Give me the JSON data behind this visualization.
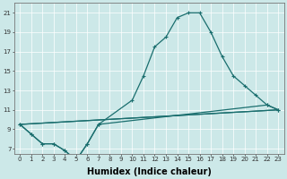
{
  "title": "",
  "xlabel": "Humidex (Indice chaleur)",
  "bg_color": "#cce8e8",
  "line_color": "#1a6e6e",
  "xlim": [
    -0.5,
    23.5
  ],
  "ylim": [
    6.5,
    22
  ],
  "xticks": [
    0,
    1,
    2,
    3,
    4,
    5,
    6,
    7,
    8,
    9,
    10,
    11,
    12,
    13,
    14,
    15,
    16,
    17,
    18,
    19,
    20,
    21,
    22,
    23
  ],
  "yticks": [
    7,
    9,
    11,
    13,
    15,
    17,
    19,
    21
  ],
  "line1_x": [
    0,
    1,
    2,
    3,
    4,
    5,
    6,
    7,
    10,
    11,
    12,
    13,
    14,
    15,
    16,
    17,
    18,
    19,
    20,
    21,
    22,
    23
  ],
  "line1_y": [
    9.5,
    8.5,
    7.5,
    7.5,
    6.8,
    5.8,
    7.5,
    9.5,
    12.0,
    14.5,
    17.5,
    18.5,
    20.5,
    21.0,
    21.0,
    19.0,
    16.5,
    14.5,
    13.5,
    12.5,
    11.5,
    11.0
  ],
  "line2_x": [
    0,
    1,
    2,
    3,
    4,
    5,
    6,
    7,
    22,
    23
  ],
  "line2_y": [
    9.5,
    8.5,
    7.5,
    7.5,
    6.8,
    5.8,
    7.5,
    9.5,
    11.5,
    11.0
  ],
  "line3_x": [
    0,
    23
  ],
  "line3_y": [
    9.5,
    11.0
  ],
  "line4_x": [
    0,
    23
  ],
  "line4_y": [
    9.5,
    11.0
  ],
  "grid_color": "#aad4d4",
  "tick_fontsize": 5,
  "xlabel_fontsize": 7
}
